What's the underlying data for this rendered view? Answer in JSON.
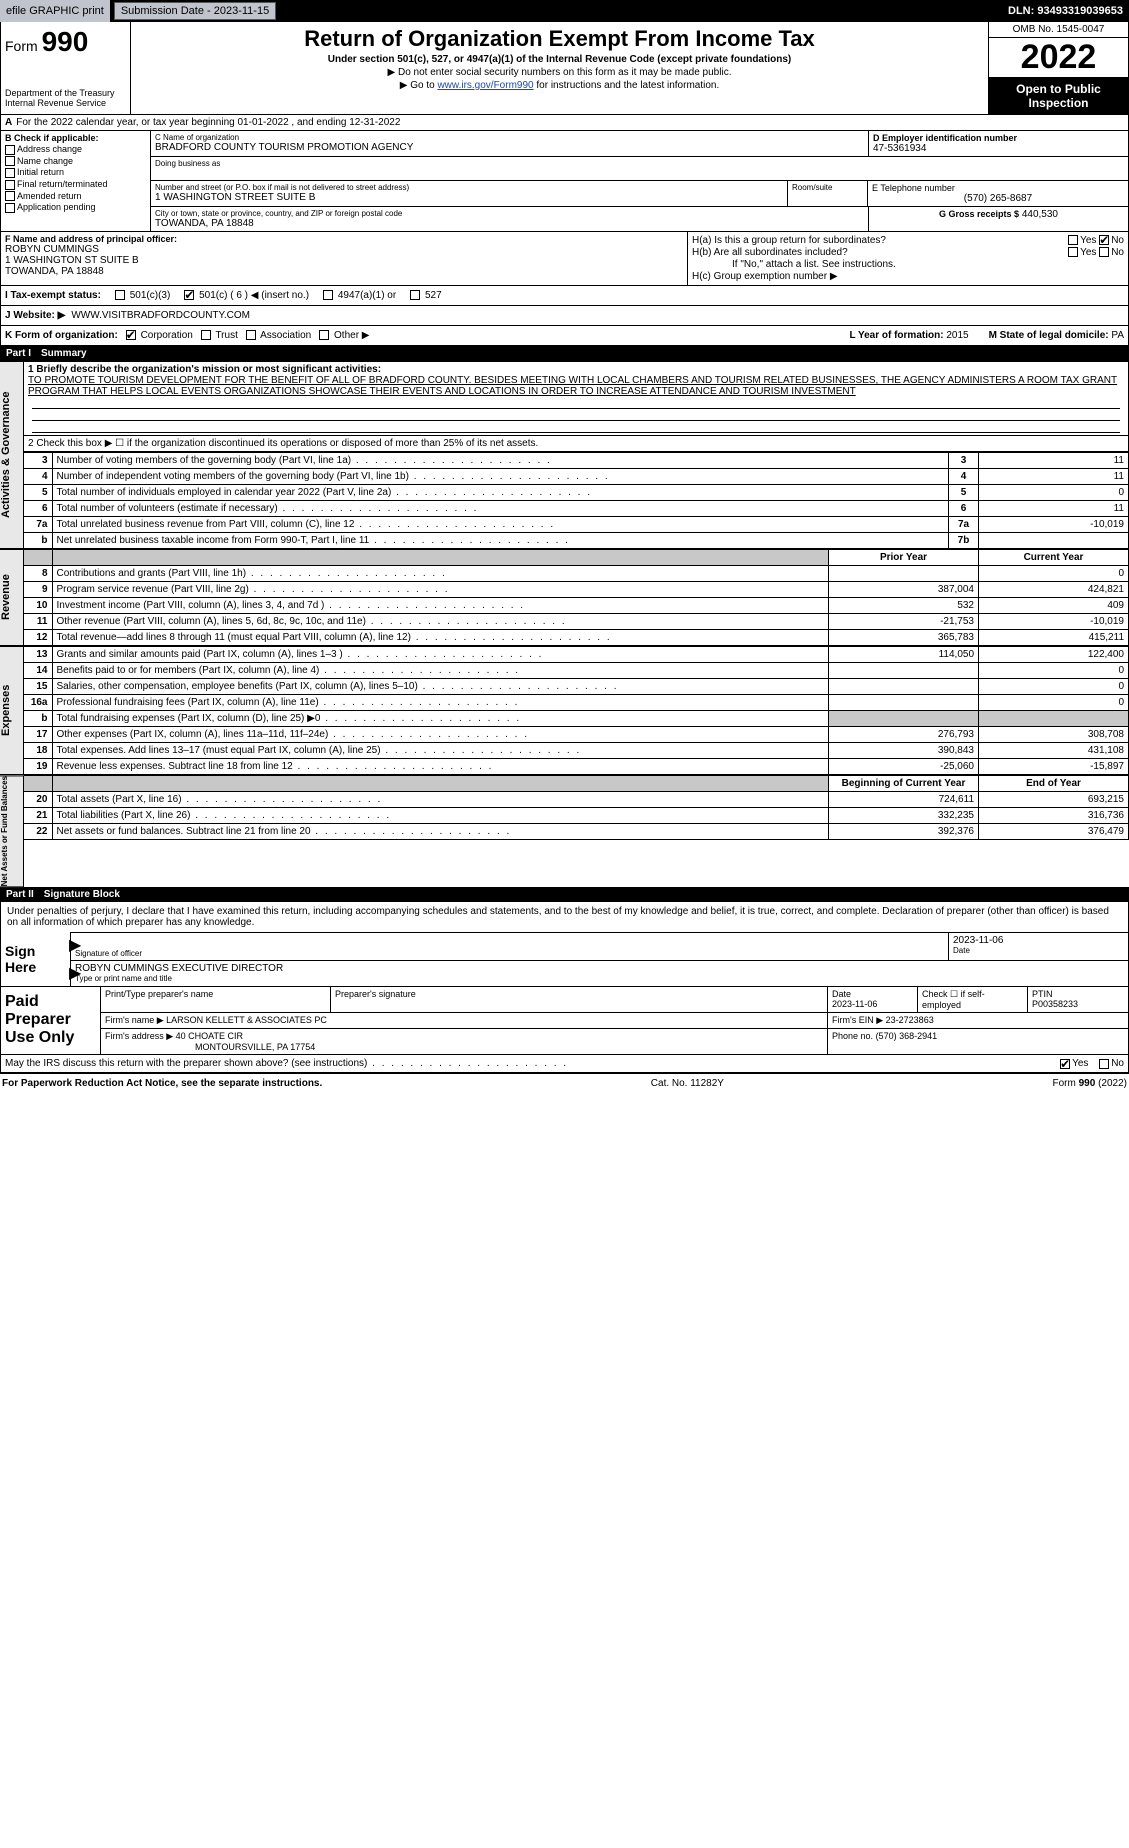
{
  "topbar": {
    "efile_label": "efile GRAPHIC print",
    "submission_label": "Submission Date - 2023-11-15",
    "dln_label": "DLN: 93493319039653"
  },
  "header": {
    "form_prefix": "Form",
    "form_number": "990",
    "title": "Return of Organization Exempt From Income Tax",
    "subtitle": "Under section 501(c), 527, or 4947(a)(1) of the Internal Revenue Code (except private foundations)",
    "note1": "▶ Do not enter social security numbers on this form as it may be made public.",
    "note2_pre": "▶ Go to ",
    "note2_link": "www.irs.gov/Form990",
    "note2_post": " for instructions and the latest information.",
    "dept1": "Department of the Treasury",
    "dept2": "Internal Revenue Service",
    "omb": "OMB No. 1545-0047",
    "tax_year": "2022",
    "open_public": "Open to Public Inspection"
  },
  "row_a": {
    "prefix": "A",
    "text": "For the 2022 calendar year, or tax year beginning 01-01-2022    , and ending 12-31-2022"
  },
  "section_b": {
    "label": "B Check if applicable:",
    "items": [
      "Address change",
      "Name change",
      "Initial return",
      "Final return/terminated",
      "Amended return",
      "Application pending"
    ]
  },
  "section_c": {
    "name_label": "C Name of organization",
    "name": "BRADFORD COUNTY TOURISM PROMOTION AGENCY",
    "dba_label": "Doing business as",
    "street_label": "Number and street (or P.O. box if mail is not delivered to street address)",
    "street": "1 WASHINGTON STREET SUITE B",
    "room_label": "Room/suite",
    "city_label": "City or town, state or province, country, and ZIP or foreign postal code",
    "city": "TOWANDA, PA  18848"
  },
  "section_d": {
    "label": "D Employer identification number",
    "value": "47-5361934"
  },
  "section_e": {
    "label": "E Telephone number",
    "value": "(570) 265-8687"
  },
  "section_g": {
    "label": "G Gross receipts $",
    "value": "440,530"
  },
  "section_f": {
    "label": "F Name and address of principal officer:",
    "name": "ROBYN CUMMINGS",
    "street": "1 WASHINGTON ST SUITE B",
    "city": "TOWANDA, PA  18848"
  },
  "section_h": {
    "a_label": "H(a)  Is this a group return for subordinates?",
    "b_label": "H(b)  Are all subordinates included?",
    "b_note": "If \"No,\" attach a list. See instructions.",
    "c_label": "H(c)  Group exemption number ▶",
    "yes": "Yes",
    "no": "No"
  },
  "row_i": {
    "label": "I   Tax-exempt status:",
    "o501c3": "501(c)(3)",
    "o501c": "501(c) ( 6 ) ◀ (insert no.)",
    "o4947": "4947(a)(1) or",
    "o527": "527"
  },
  "row_j": {
    "label": "J   Website: ▶",
    "value": "WWW.VISITBRADFORDCOUNTY.COM"
  },
  "row_k": {
    "label": "K Form of organization:",
    "corp": "Corporation",
    "trust": "Trust",
    "assoc": "Association",
    "other": "Other ▶"
  },
  "row_l": {
    "label": "L Year of formation:",
    "value": "2015"
  },
  "row_m": {
    "label": "M State of legal domicile:",
    "value": "PA"
  },
  "part1": {
    "num": "Part I",
    "title": "Summary",
    "line1_label": "1  Briefly describe the organization's mission or most significant activities:",
    "mission": "TO PROMOTE TOURISM DEVELOPMENT FOR THE BENEFIT OF ALL OF BRADFORD COUNTY. BESIDES MEETING WITH LOCAL CHAMBERS AND TOURISM RELATED BUSINESSES, THE AGENCY ADMINISTERS A ROOM TAX GRANT PROGRAM THAT HELPS LOCAL EVENTS ORGANIZATIONS SHOWCASE THEIR EVENTS AND LOCATIONS IN ORDER TO INCREASE ATTENDANCE AND TOURISM INVESTMENT",
    "line2": "2   Check this box ▶ ☐  if the organization discontinued its operations or disposed of more than 25% of its net assets.",
    "side1": "Activities & Governance",
    "side2": "Revenue",
    "side3": "Expenses",
    "side4": "Net Assets or Fund Balances",
    "gov_rows": [
      {
        "n": "3",
        "d": "Number of voting members of the governing body (Part VI, line 1a)",
        "c": "3",
        "v": "11"
      },
      {
        "n": "4",
        "d": "Number of independent voting members of the governing body (Part VI, line 1b)",
        "c": "4",
        "v": "11"
      },
      {
        "n": "5",
        "d": "Total number of individuals employed in calendar year 2022 (Part V, line 2a)",
        "c": "5",
        "v": "0"
      },
      {
        "n": "6",
        "d": "Total number of volunteers (estimate if necessary)",
        "c": "6",
        "v": "11"
      },
      {
        "n": "7a",
        "d": "Total unrelated business revenue from Part VIII, column (C), line 12",
        "c": "7a",
        "v": "-10,019"
      },
      {
        "n": "b",
        "d": "Net unrelated business taxable income from Form 990-T, Part I, line 11",
        "c": "7b",
        "v": ""
      }
    ],
    "col_prior": "Prior Year",
    "col_current": "Current Year",
    "rev_rows": [
      {
        "n": "8",
        "d": "Contributions and grants (Part VIII, line 1h)",
        "p": "",
        "c": "0"
      },
      {
        "n": "9",
        "d": "Program service revenue (Part VIII, line 2g)",
        "p": "387,004",
        "c": "424,821"
      },
      {
        "n": "10",
        "d": "Investment income (Part VIII, column (A), lines 3, 4, and 7d )",
        "p": "532",
        "c": "409"
      },
      {
        "n": "11",
        "d": "Other revenue (Part VIII, column (A), lines 5, 6d, 8c, 9c, 10c, and 11e)",
        "p": "-21,753",
        "c": "-10,019"
      },
      {
        "n": "12",
        "d": "Total revenue—add lines 8 through 11 (must equal Part VIII, column (A), line 12)",
        "p": "365,783",
        "c": "415,211"
      }
    ],
    "exp_rows": [
      {
        "n": "13",
        "d": "Grants and similar amounts paid (Part IX, column (A), lines 1–3 )",
        "p": "114,050",
        "c": "122,400"
      },
      {
        "n": "14",
        "d": "Benefits paid to or for members (Part IX, column (A), line 4)",
        "p": "",
        "c": "0"
      },
      {
        "n": "15",
        "d": "Salaries, other compensation, employee benefits (Part IX, column (A), lines 5–10)",
        "p": "",
        "c": "0"
      },
      {
        "n": "16a",
        "d": "Professional fundraising fees (Part IX, column (A), line 11e)",
        "p": "",
        "c": "0"
      },
      {
        "n": "b",
        "d": "Total fundraising expenses (Part IX, column (D), line 25) ▶0",
        "p": "shade",
        "c": "shade"
      },
      {
        "n": "17",
        "d": "Other expenses (Part IX, column (A), lines 11a–11d, 11f–24e)",
        "p": "276,793",
        "c": "308,708"
      },
      {
        "n": "18",
        "d": "Total expenses. Add lines 13–17 (must equal Part IX, column (A), line 25)",
        "p": "390,843",
        "c": "431,108"
      },
      {
        "n": "19",
        "d": "Revenue less expenses. Subtract line 18 from line 12",
        "p": "-25,060",
        "c": "-15,897"
      }
    ],
    "col_boy": "Beginning of Current Year",
    "col_eoy": "End of Year",
    "na_rows": [
      {
        "n": "20",
        "d": "Total assets (Part X, line 16)",
        "p": "724,611",
        "c": "693,215"
      },
      {
        "n": "21",
        "d": "Total liabilities (Part X, line 26)",
        "p": "332,235",
        "c": "316,736"
      },
      {
        "n": "22",
        "d": "Net assets or fund balances. Subtract line 21 from line 20",
        "p": "392,376",
        "c": "376,479"
      }
    ]
  },
  "part2": {
    "num": "Part II",
    "title": "Signature Block",
    "declaration": "Under penalties of perjury, I declare that I have examined this return, including accompanying schedules and statements, and to the best of my knowledge and belief, it is true, correct, and complete. Declaration of preparer (other than officer) is based on all information of which preparer has any knowledge.",
    "sign_here": "Sign Here",
    "sig_officer": "Signature of officer",
    "sig_date": "Date",
    "sig_date_val": "2023-11-06",
    "officer_name": "ROBYN CUMMINGS  EXECUTIVE DIRECTOR",
    "officer_sub": "Type or print name and title"
  },
  "preparer": {
    "label": "Paid Preparer Use Only",
    "h_name": "Print/Type preparer's name",
    "h_sig": "Preparer's signature",
    "h_date": "Date",
    "date_val": "2023-11-06",
    "h_check": "Check ☐ if self-employed",
    "h_ptin": "PTIN",
    "ptin_val": "P00358233",
    "firm_name_l": "Firm's name    ▶",
    "firm_name": "LARSON KELLETT & ASSOCIATES PC",
    "firm_ein_l": "Firm's EIN ▶",
    "firm_ein": "23-2723863",
    "firm_addr_l": "Firm's address ▶",
    "firm_addr1": "40 CHOATE CIR",
    "firm_addr2": "MONTOURSVILLE, PA  17754",
    "phone_l": "Phone no.",
    "phone": "(570) 368-2941"
  },
  "discuss": {
    "text": "May the IRS discuss this return with the preparer shown above? (see instructions)",
    "yes": "Yes",
    "no": "No"
  },
  "footer": {
    "left": "For Paperwork Reduction Act Notice, see the separate instructions.",
    "mid": "Cat. No. 11282Y",
    "right_pre": "Form ",
    "right_b": "990",
    "right_post": " (2022)"
  }
}
